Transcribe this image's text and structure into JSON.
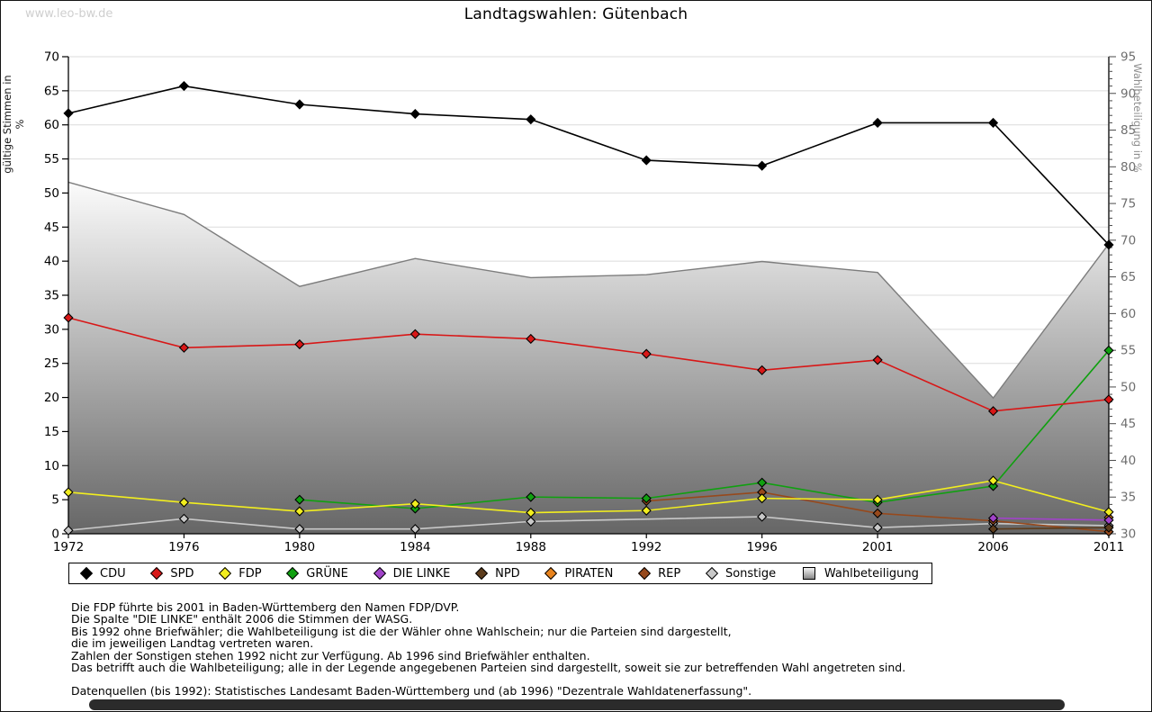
{
  "watermark": "www.leo-bw.de",
  "title": "Landtagswahlen: Gütenbach",
  "chart_data": {
    "type": "line",
    "title": "Landtagswahlen: Gütenbach",
    "categories": [
      1972,
      1976,
      1980,
      1984,
      1988,
      1992,
      1996,
      2001,
      2006,
      2011
    ],
    "xlabel": "",
    "ylabel_left": "gültige Stimmen in %",
    "ylabel_right": "Wahlbeteiligung in %",
    "ylim_left": [
      0,
      70
    ],
    "ylim_right": [
      30,
      95
    ],
    "yticks_left": [
      0,
      5,
      10,
      15,
      20,
      25,
      30,
      35,
      40,
      45,
      50,
      55,
      60,
      65,
      70
    ],
    "yticks_right": [
      30,
      35,
      40,
      45,
      50,
      55,
      60,
      65,
      70,
      75,
      80,
      85,
      90,
      95
    ],
    "grid": true,
    "legend_position": "bottom",
    "series": [
      {
        "name": "CDU",
        "type": "line",
        "axis": "left",
        "color": "#000000",
        "values": [
          61.7,
          65.7,
          63.0,
          61.6,
          60.8,
          54.8,
          54.0,
          60.3,
          60.3,
          42.4
        ]
      },
      {
        "name": "SPD",
        "type": "line",
        "axis": "left",
        "color": "#d81717",
        "values": [
          31.7,
          27.3,
          27.8,
          29.3,
          28.6,
          26.4,
          24.0,
          25.5,
          18.0,
          19.7
        ]
      },
      {
        "name": "FDP",
        "type": "line",
        "axis": "left",
        "color": "#f2ee1f",
        "values": [
          6.1,
          4.6,
          3.3,
          4.4,
          3.1,
          3.4,
          5.2,
          5.0,
          7.8,
          3.2
        ]
      },
      {
        "name": "GRÜNE",
        "type": "line",
        "axis": "left",
        "color": "#10a010",
        "values": [
          null,
          null,
          5.0,
          3.7,
          5.4,
          5.2,
          7.5,
          4.6,
          7.0,
          26.9
        ]
      },
      {
        "name": "DIE LINKE",
        "type": "line",
        "axis": "left",
        "color": "#a143c9",
        "values": [
          null,
          null,
          null,
          null,
          null,
          null,
          null,
          null,
          2.3,
          2.0
        ]
      },
      {
        "name": "NPD",
        "type": "line",
        "axis": "left",
        "color": "#5c3c1c",
        "values": [
          null,
          null,
          null,
          null,
          null,
          null,
          null,
          null,
          0.7,
          0.9
        ]
      },
      {
        "name": "PIRATEN",
        "type": "line",
        "axis": "left",
        "color": "#e8831d",
        "values": [
          null,
          null,
          null,
          null,
          null,
          null,
          null,
          null,
          null,
          2.4
        ]
      },
      {
        "name": "REP",
        "type": "line",
        "axis": "left",
        "color": "#97491c",
        "values": [
          null,
          null,
          null,
          null,
          null,
          4.8,
          6.1,
          3.0,
          1.9,
          0.3
        ]
      },
      {
        "name": "Sonstige",
        "type": "line",
        "axis": "left",
        "color": "#c8c8c8",
        "values": [
          0.5,
          2.2,
          0.7,
          0.7,
          1.8,
          null,
          2.5,
          0.9,
          1.5,
          1.2
        ]
      },
      {
        "name": "Wahlbeteiligung",
        "type": "area",
        "axis": "right",
        "color_top": "#fbfbfb",
        "color_bottom": "#666666",
        "outline": "#7d7d7d",
        "values": [
          77.9,
          73.5,
          63.7,
          67.5,
          64.9,
          65.3,
          67.1,
          65.6,
          48.5,
          69.5
        ]
      }
    ]
  },
  "footnotes": [
    "Die FDP führte bis 2001 in Baden-Württemberg den Namen FDP/DVP.",
    "Die Spalte \"DIE LINKE\" enthält 2006 die Stimmen der WASG.",
    "Bis 1992 ohne Briefwähler; die Wahlbeteiligung ist die der Wähler ohne Wahlschein; nur die Parteien sind dargestellt,",
    "die im jeweiligen Landtag vertreten waren.",
    "Zahlen der Sonstigen stehen 1992 nicht zur Verfügung. Ab 1996 sind Briefwähler enthalten.",
    "Das betrifft auch die Wahlbeteiligung; alle in der Legende angegebenen Parteien sind dargestellt, soweit sie zur betreffenden Wahl angetreten sind.",
    "Datenquellen (bis 1992): Statistisches Landesamt Baden-Württemberg und (ab 1996) \"Dezentrale Wahldatenerfassung\"."
  ],
  "colors": {
    "grid": "#dcdcdc",
    "axis": "#000000",
    "right_axis_text": "#6e6e6e",
    "watermark": "#cfcfcf"
  }
}
